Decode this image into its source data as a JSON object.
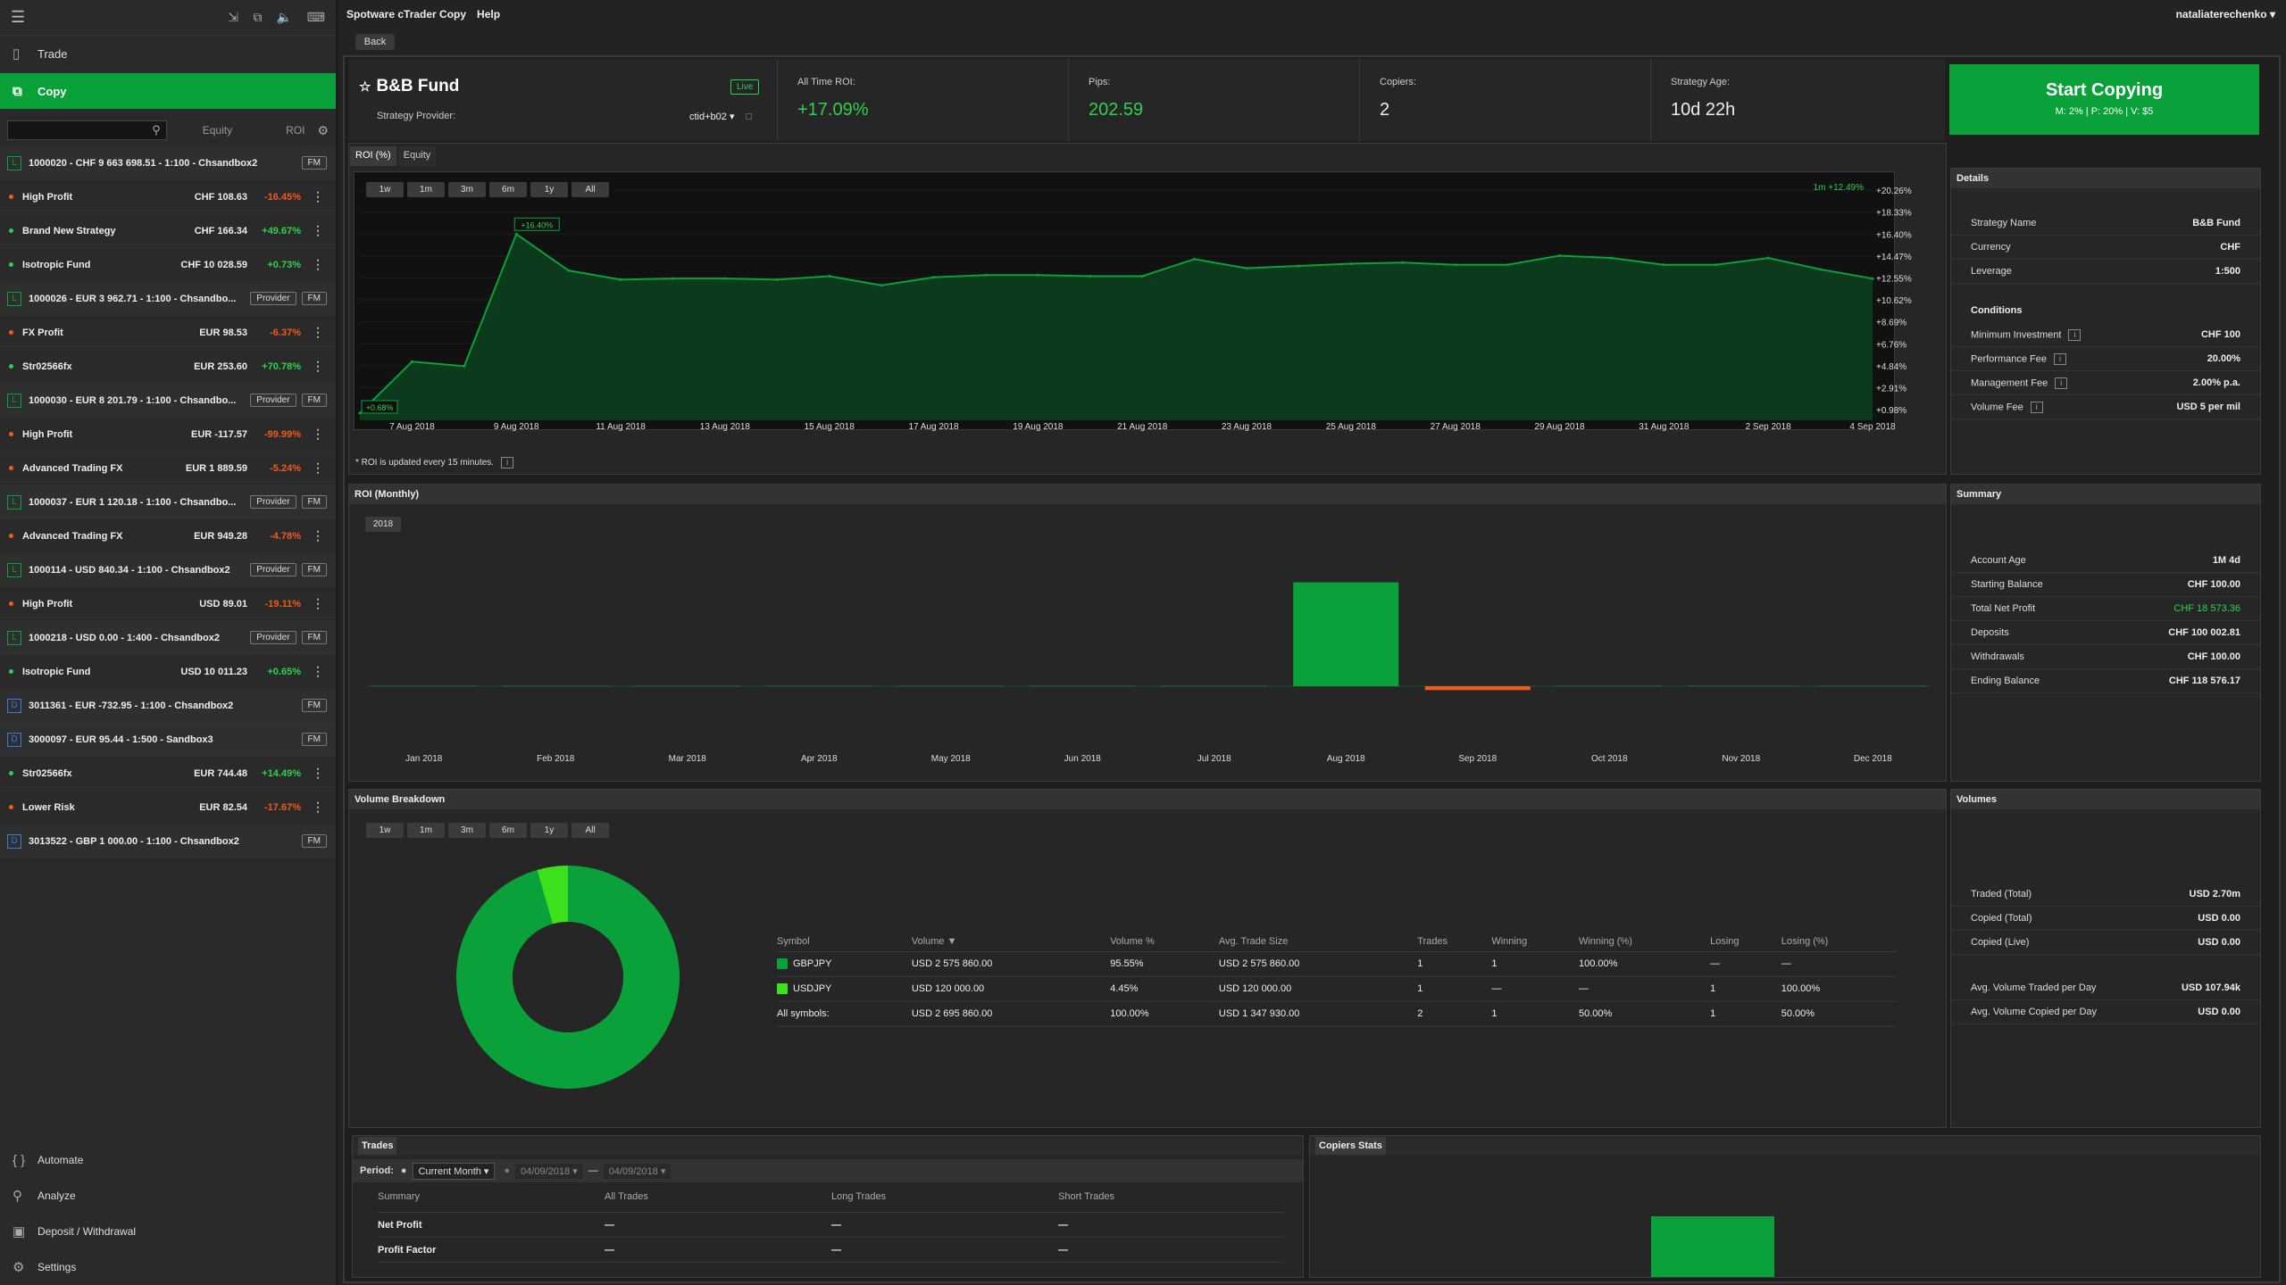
{
  "app": {
    "title": "Spotware cTrader Copy",
    "help": "Help",
    "user": "nataliaterechenko",
    "back": "Back"
  },
  "sidebar": {
    "nav": [
      {
        "label": "Trade"
      },
      {
        "label": "Copy"
      }
    ],
    "headers": {
      "equity": "Equity",
      "roi": "ROI"
    },
    "rows": [
      {
        "type": "acct",
        "badge": "L",
        "name": "1000020 - CHF 9 663 698.51 - 1:100 - Chsandbox2",
        "buttons": [
          "FM"
        ]
      },
      {
        "type": "strat",
        "name": "High Profit",
        "balance": "CHF 108.63",
        "pct": "-16.45%",
        "dir": "neg"
      },
      {
        "type": "strat",
        "name": "Brand New Strategy",
        "balance": "CHF 166.34",
        "pct": "+49.67%",
        "dir": "pos"
      },
      {
        "type": "strat",
        "name": "Isotropic Fund",
        "balance": "CHF 10 028.59",
        "pct": "+0.73%",
        "dir": "pos"
      },
      {
        "type": "acct",
        "badge": "L",
        "name": "1000026 - EUR 3 962.71 - 1:100 - Chsandbo...",
        "buttons": [
          "Provider",
          "FM"
        ]
      },
      {
        "type": "strat",
        "name": "FX Profit",
        "balance": "EUR 98.53",
        "pct": "-6.37%",
        "dir": "neg"
      },
      {
        "type": "strat",
        "name": "Str02566fx",
        "balance": "EUR 253.60",
        "pct": "+70.78%",
        "dir": "pos"
      },
      {
        "type": "acct",
        "badge": "L",
        "name": "1000030 - EUR 8 201.79 - 1:100 - Chsandbo...",
        "buttons": [
          "Provider",
          "FM"
        ]
      },
      {
        "type": "strat",
        "name": "High Profit",
        "balance": "EUR -117.57",
        "pct": "-99.99%",
        "dir": "neg"
      },
      {
        "type": "strat",
        "name": "Advanced Trading FX",
        "balance": "EUR 1 889.59",
        "pct": "-5.24%",
        "dir": "neg"
      },
      {
        "type": "acct",
        "badge": "L",
        "name": "1000037 - EUR 1 120.18 - 1:100 - Chsandbo...",
        "buttons": [
          "Provider",
          "FM"
        ]
      },
      {
        "type": "strat",
        "name": "Advanced Trading FX",
        "balance": "EUR 949.28",
        "pct": "-4.78%",
        "dir": "neg"
      },
      {
        "type": "acct",
        "badge": "L",
        "name": "1000114 - USD 840.34 - 1:100 - Chsandbox2",
        "buttons": [
          "Provider",
          "FM"
        ]
      },
      {
        "type": "strat",
        "name": "High Profit",
        "balance": "USD 89.01",
        "pct": "-19.11%",
        "dir": "neg"
      },
      {
        "type": "acct",
        "badge": "L",
        "name": "1000218 - USD 0.00 - 1:400 - Chsandbox2",
        "buttons": [
          "Provider",
          "FM"
        ]
      },
      {
        "type": "strat",
        "name": "Isotropic Fund",
        "balance": "USD 10 011.23",
        "pct": "+0.65%",
        "dir": "pos"
      },
      {
        "type": "acct",
        "badge": "D",
        "name": "3011361 - EUR -732.95 - 1:100 - Chsandbox2",
        "buttons": [
          "FM"
        ]
      },
      {
        "type": "acct",
        "badge": "D",
        "name": "3000097 - EUR 95.44 - 1:500 - Sandbox3",
        "buttons": [
          "FM"
        ]
      },
      {
        "type": "strat",
        "name": "Str02566fx",
        "balance": "EUR 744.48",
        "pct": "+14.49%",
        "dir": "pos"
      },
      {
        "type": "strat",
        "name": "Lower Risk",
        "balance": "EUR 82.54",
        "pct": "-17.67%",
        "dir": "neg"
      },
      {
        "type": "acct",
        "badge": "D",
        "name": "3013522 - GBP 1 000.00 - 1:100 - Chsandbox2",
        "buttons": [
          "FM"
        ]
      }
    ],
    "bottom_nav": [
      {
        "label": "Automate"
      },
      {
        "label": "Analyze"
      },
      {
        "label": "Deposit / Withdrawal"
      },
      {
        "label": "Settings"
      }
    ]
  },
  "strategy": {
    "name": "B&B Fund",
    "live": "Live",
    "provider_label": "Strategy Provider:",
    "provider": "ctid+b02",
    "roi_label": "All Time ROI:",
    "roi": "+17.09%",
    "pips_label": "Pips:",
    "pips": "202.59",
    "copiers_label": "Copiers:",
    "copiers": "2",
    "age_label": "Strategy Age:",
    "age": "10d 22h",
    "start": "Start Copying",
    "start_sub": "M: 2% | P: 20% | V: $5"
  },
  "tabs": [
    "ROI (%)",
    "Equity"
  ],
  "ranges": [
    "1w",
    "1m",
    "3m",
    "6m",
    "1y",
    "All"
  ],
  "roi_note": "* ROI is updated every 15 minutes.",
  "chart_data": [
    {
      "type": "area",
      "title": "ROI (%)",
      "x": [
        "6 Aug 2018",
        "7 Aug 2018",
        "8 Aug 2018",
        "9 Aug 2018",
        "10 Aug 2018",
        "11 Aug 2018",
        "12 Aug 2018",
        "13 Aug 2018",
        "14 Aug 2018",
        "15 Aug 2018",
        "16 Aug 2018",
        "17 Aug 2018",
        "18 Aug 2018",
        "19 Aug 2018",
        "20 Aug 2018",
        "21 Aug 2018",
        "22 Aug 2018",
        "23 Aug 2018",
        "24 Aug 2018",
        "25 Aug 2018",
        "26 Aug 2018",
        "27 Aug 2018",
        "28 Aug 2018",
        "29 Aug 2018",
        "30 Aug 2018",
        "31 Aug 2018",
        "1 Sep 2018",
        "2 Sep 2018",
        "3 Sep 2018",
        "4 Sep 2018"
      ],
      "values": [
        0.68,
        5.2,
        4.8,
        16.4,
        13.2,
        12.4,
        12.5,
        12.5,
        12.4,
        12.7,
        11.9,
        12.6,
        12.8,
        12.8,
        12.7,
        12.7,
        14.2,
        13.4,
        13.6,
        13.8,
        13.9,
        13.7,
        13.7,
        14.5,
        14.3,
        13.7,
        13.7,
        14.3,
        13.3,
        12.49
      ],
      "x_ticks": [
        "7 Aug 2018",
        "9 Aug 2018",
        "11 Aug 2018",
        "13 Aug 2018",
        "15 Aug 2018",
        "17 Aug 2018",
        "19 Aug 2018",
        "21 Aug 2018",
        "23 Aug 2018",
        "25 Aug 2018",
        "27 Aug 2018",
        "29 Aug 2018",
        "31 Aug 2018",
        "2 Sep 2018",
        "4 Sep 2018"
      ],
      "y_ticks": [
        "+20.26%",
        "+18.33%",
        "+16.40%",
        "+14.47%",
        "+12.55%",
        "+10.62%",
        "+8.69%",
        "+6.76%",
        "+4.84%",
        "+2.91%",
        "+0.98%"
      ],
      "ylim": [
        0.05,
        21.2
      ],
      "annotations": {
        "peak": "+16.40%",
        "start": "+0.68%",
        "current": "1m +12.49%"
      }
    },
    {
      "type": "bar",
      "title": "ROI (Monthly)",
      "year": "2018",
      "categories": [
        "Jan 2018",
        "Feb 2018",
        "Mar 2018",
        "Apr 2018",
        "May 2018",
        "Jun 2018",
        "Jul 2018",
        "Aug 2018",
        "Sep 2018",
        "Oct 2018",
        "Nov 2018",
        "Dec 2018"
      ],
      "values": [
        0,
        0,
        0,
        0,
        0,
        0,
        0,
        16.4,
        -0.6,
        0,
        0,
        0
      ]
    },
    {
      "type": "pie",
      "title": "Volume Breakdown",
      "categories": [
        "GBPJPY",
        "USDJPY"
      ],
      "values": [
        95.55,
        4.45
      ],
      "colors": [
        "#0aa13a",
        "#3ee01e"
      ]
    }
  ],
  "details": {
    "title": "Details",
    "rows": [
      {
        "k": "Strategy Name",
        "v": "B&B Fund"
      },
      {
        "k": "Currency",
        "v": "CHF"
      },
      {
        "k": "Leverage",
        "v": "1:500"
      }
    ],
    "conditions_title": "Conditions",
    "conditions": [
      {
        "k": "Minimum Investment",
        "v": "CHF 100"
      },
      {
        "k": "Performance Fee",
        "v": "20.00%"
      },
      {
        "k": "Management Fee",
        "v": "2.00% p.a."
      },
      {
        "k": "Volume Fee",
        "v": "USD 5 per mil"
      }
    ]
  },
  "summary": {
    "title": "Summary",
    "rows": [
      {
        "k": "Account Age",
        "v": "1M 4d"
      },
      {
        "k": "Starting Balance",
        "v": "CHF 100.00"
      },
      {
        "k": "Total Net Profit",
        "v": "CHF 18 573.36",
        "g": true
      },
      {
        "k": "Deposits",
        "v": "CHF 100 002.81"
      },
      {
        "k": "Withdrawals",
        "v": "CHF 100.00"
      },
      {
        "k": "Ending Balance",
        "v": "CHF 118 576.17"
      }
    ]
  },
  "volumes": {
    "title": "Volumes",
    "rows": [
      {
        "k": "Traded (Total)",
        "v": "USD 2.70m"
      },
      {
        "k": "Copied (Total)",
        "v": "USD 0.00"
      },
      {
        "k": "Copied (Live)",
        "v": "USD 0.00"
      }
    ],
    "rows2": [
      {
        "k": "Avg. Volume Traded per Day",
        "v": "USD 107.94k"
      },
      {
        "k": "Avg. Volume Copied per Day",
        "v": "USD 0.00"
      }
    ]
  },
  "volume_table": {
    "headers": [
      "Symbol",
      "Volume ▼",
      "Volume %",
      "Avg. Trade Size",
      "Trades",
      "Winning",
      "Winning (%)",
      "Losing",
      "Losing (%)"
    ],
    "rows": [
      [
        "GBPJPY",
        "USD 2 575 860.00",
        "95.55%",
        "USD 2 575 860.00",
        "1",
        "1",
        "100.00%",
        "—",
        "—"
      ],
      [
        "USDJPY",
        "USD 120 000.00",
        "4.45%",
        "USD 120 000.00",
        "1",
        "—",
        "—",
        "1",
        "100.00%"
      ],
      [
        "All symbols:",
        "USD 2 695 860.00",
        "100.00%",
        "USD 1 347 930.00",
        "2",
        "1",
        "50.00%",
        "1",
        "50.00%"
      ]
    ]
  },
  "trades": {
    "title": "Trades",
    "period_label": "Period:",
    "period": "Current Month",
    "date_from": "04/09/2018",
    "date_to": "04/09/2018",
    "headers": [
      "Summary",
      "All Trades",
      "Long Trades",
      "Short Trades"
    ],
    "rows": [
      [
        "Net Profit",
        "—",
        "—",
        "—"
      ],
      [
        "Profit Factor",
        "—",
        "—",
        "—"
      ]
    ]
  },
  "copiers_stats": {
    "title": "Copiers Stats"
  }
}
